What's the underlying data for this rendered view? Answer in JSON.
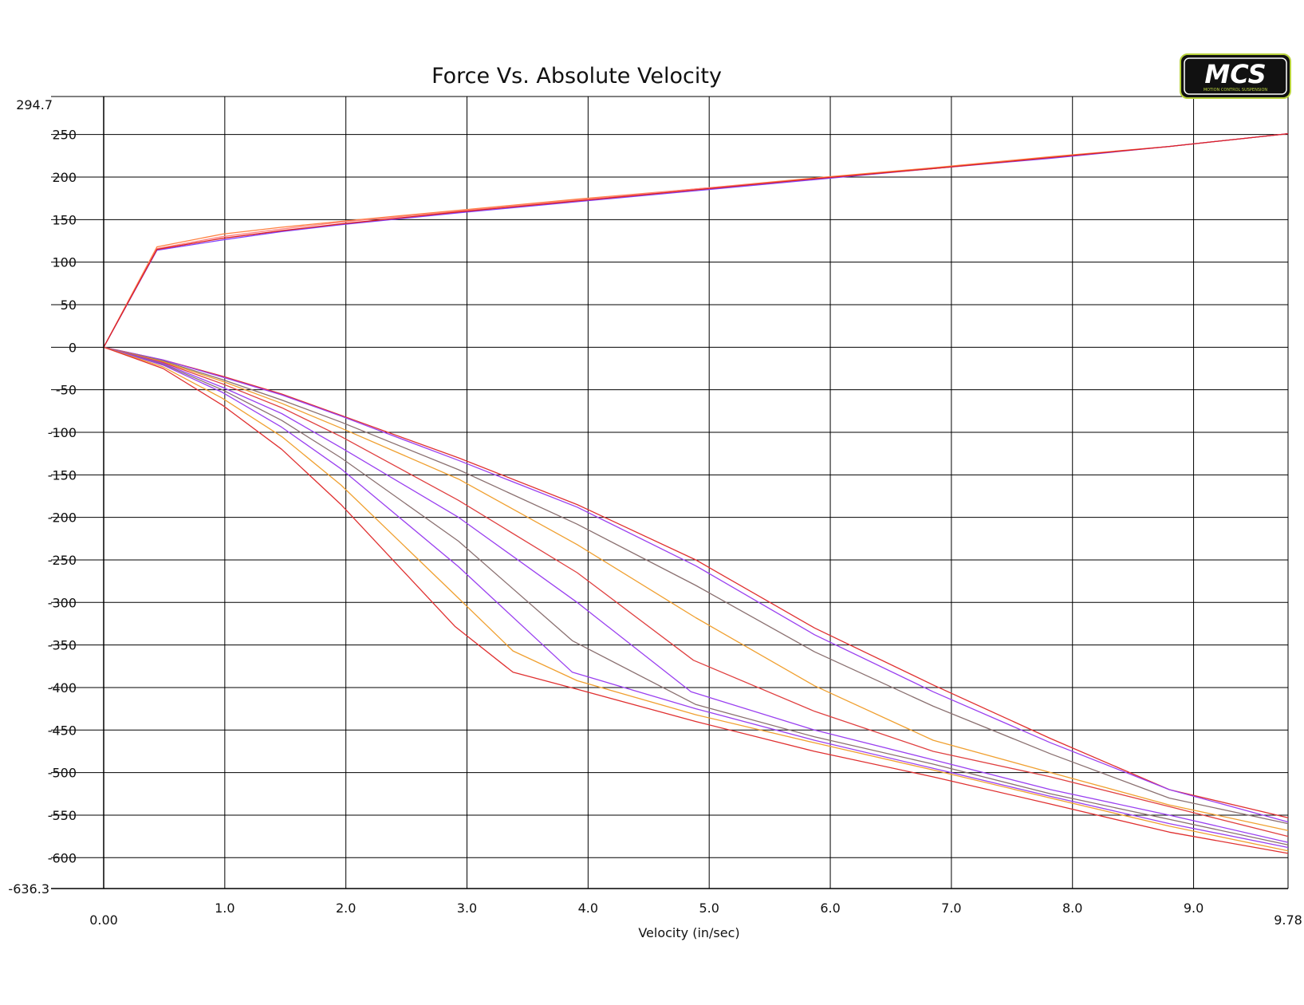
{
  "chart_data": {
    "type": "line",
    "title": "Force Vs. Absolute Velocity",
    "xlabel": "Velocity (in/sec)",
    "ylabel": "",
    "xlim": [
      0,
      9.78
    ],
    "ylim": [
      -636.3,
      294.7
    ],
    "x_ticks": [
      "0.00",
      "1.0",
      "2.0",
      "3.0",
      "4.0",
      "5.0",
      "6.0",
      "7.0",
      "8.0",
      "9.0",
      "9.78"
    ],
    "x_tick_values": [
      0,
      1,
      2,
      3,
      4,
      5,
      6,
      7,
      8,
      9,
      9.78
    ],
    "y_ticks": [
      "294.7",
      "250",
      "200",
      "150",
      "100",
      "50",
      "0",
      "-50",
      "-100",
      "-150",
      "-200",
      "-250",
      "-300",
      "-350",
      "-400",
      "-450",
      "-500",
      "-550",
      "-600",
      "-636.3"
    ],
    "y_tick_values": [
      294.7,
      250,
      200,
      150,
      100,
      50,
      0,
      -50,
      -100,
      -150,
      -200,
      -250,
      -300,
      -350,
      -400,
      -450,
      -500,
      -550,
      -600,
      -636.3
    ],
    "grid": true,
    "legend": "none",
    "series": [
      {
        "color": "#ff8040",
        "x": [
          0,
          0.44,
          0.98,
          1.47,
          1.96,
          2.93,
          3.91,
          4.89,
          5.87,
          6.85,
          7.82,
          8.8,
          9.78
        ],
        "y": [
          0,
          118,
          133,
          141,
          148,
          161,
          174,
          186,
          199,
          211,
          224,
          236,
          251
        ]
      },
      {
        "color": "#ff8080",
        "x": [
          0,
          0.44,
          0.98,
          1.47,
          1.96,
          2.93,
          3.91,
          4.89,
          5.87,
          6.85,
          7.82,
          8.8,
          9.78
        ],
        "y": [
          0,
          116,
          130,
          139,
          147,
          160,
          173,
          186,
          198,
          210,
          223,
          236,
          251
        ]
      },
      {
        "color": "#8040ff",
        "x": [
          0,
          0.44,
          0.98,
          1.47,
          1.96,
          2.93,
          3.91,
          4.89,
          5.87,
          6.85,
          7.82,
          8.8,
          9.78
        ],
        "y": [
          0,
          114,
          126,
          136,
          144,
          158,
          171,
          184,
          197,
          210,
          222,
          236,
          251
        ]
      },
      {
        "color": "#dd2222",
        "x": [
          0,
          0.44,
          0.98,
          1.47,
          1.96,
          2.93,
          3.91,
          4.89,
          5.87,
          6.85,
          7.82,
          8.8,
          9.78
        ],
        "y": [
          0,
          115,
          128,
          137,
          145,
          159,
          172,
          185,
          198,
          210,
          223,
          236,
          251
        ]
      },
      {
        "color": "#e03030",
        "x": [
          0,
          0.49,
          0.98,
          1.47,
          1.96,
          2.93,
          3.91,
          4.89,
          5.87,
          6.85,
          7.82,
          8.8,
          9.78
        ],
        "y": [
          0,
          -15,
          -34,
          -55,
          -80,
          -130,
          -185,
          -250,
          -330,
          -397,
          -460,
          -520,
          -553
        ]
      },
      {
        "color": "#9a40f0",
        "x": [
          0,
          0.49,
          0.98,
          1.47,
          1.96,
          2.93,
          3.91,
          4.89,
          5.87,
          6.85,
          7.82,
          8.8,
          9.78
        ],
        "y": [
          0,
          -15,
          -35,
          -56,
          -81,
          -133,
          -188,
          -257,
          -338,
          -405,
          -465,
          -520,
          -558
        ]
      },
      {
        "color": "#8a7070",
        "x": [
          0,
          0.49,
          0.98,
          1.47,
          1.96,
          2.93,
          3.91,
          4.89,
          5.87,
          6.85,
          7.82,
          8.8,
          9.78
        ],
        "y": [
          0,
          -16,
          -38,
          -62,
          -88,
          -144,
          -208,
          -280,
          -358,
          -422,
          -478,
          -530,
          -560
        ]
      },
      {
        "color": "#f0a030",
        "x": [
          0,
          0.49,
          0.98,
          1.47,
          1.96,
          2.93,
          3.91,
          4.89,
          5.87,
          6.85,
          7.82,
          8.8,
          9.78
        ],
        "y": [
          0,
          -17,
          -40,
          -66,
          -95,
          -155,
          -232,
          -318,
          -398,
          -462,
          -500,
          -538,
          -568
        ]
      },
      {
        "color": "#e04040",
        "x": [
          0,
          0.49,
          0.98,
          1.47,
          1.96,
          2.93,
          3.91,
          4.87,
          5.87,
          6.85,
          7.82,
          8.8,
          9.78
        ],
        "y": [
          0,
          -18,
          -43,
          -71,
          -105,
          -180,
          -265,
          -368,
          -428,
          -475,
          -505,
          -540,
          -575
        ]
      },
      {
        "color": "#9a40f0",
        "x": [
          0,
          0.49,
          0.98,
          1.47,
          1.96,
          2.93,
          3.91,
          4.85,
          5.87,
          6.85,
          7.82,
          8.8,
          9.78
        ],
        "y": [
          0,
          -19,
          -47,
          -78,
          -118,
          -200,
          -300,
          -405,
          -450,
          -485,
          -520,
          -550,
          -582
        ]
      },
      {
        "color": "#8a7070",
        "x": [
          0,
          0.49,
          0.98,
          1.47,
          1.96,
          2.93,
          3.87,
          4.89,
          5.87,
          6.85,
          7.82,
          8.8,
          9.78
        ],
        "y": [
          0,
          -20,
          -50,
          -86,
          -130,
          -228,
          -345,
          -420,
          -458,
          -490,
          -525,
          -555,
          -585
        ]
      },
      {
        "color": "#9a40f0",
        "x": [
          0,
          0.49,
          0.98,
          1.47,
          1.96,
          2.93,
          3.87,
          4.89,
          5.87,
          6.85,
          7.82,
          8.8,
          9.78
        ],
        "y": [
          0,
          -21,
          -53,
          -94,
          -143,
          -258,
          -382,
          -425,
          -462,
          -495,
          -528,
          -560,
          -588
        ]
      },
      {
        "color": "#f0a030",
        "x": [
          0,
          0.49,
          0.98,
          1.47,
          1.96,
          2.93,
          3.38,
          3.91,
          4.89,
          5.87,
          6.85,
          7.82,
          8.8,
          9.78
        ],
        "y": [
          0,
          -23,
          -60,
          -105,
          -162,
          -295,
          -357,
          -392,
          -432,
          -465,
          -497,
          -530,
          -563,
          -592
        ]
      },
      {
        "color": "#e03030",
        "x": [
          0,
          0.49,
          0.98,
          1.47,
          1.96,
          2.9,
          3.38,
          3.91,
          4.89,
          5.87,
          6.85,
          7.82,
          8.8,
          9.78
        ],
        "y": [
          0,
          -25,
          -68,
          -120,
          -185,
          -328,
          -382,
          -402,
          -440,
          -475,
          -505,
          -537,
          -570,
          -595
        ]
      }
    ]
  },
  "logo": {
    "text": "MCS",
    "subtext": "MOTION CONTROL SUSPENSION",
    "bg": "#111111",
    "accent": "#b8d23c",
    "fg": "#ffffff"
  }
}
